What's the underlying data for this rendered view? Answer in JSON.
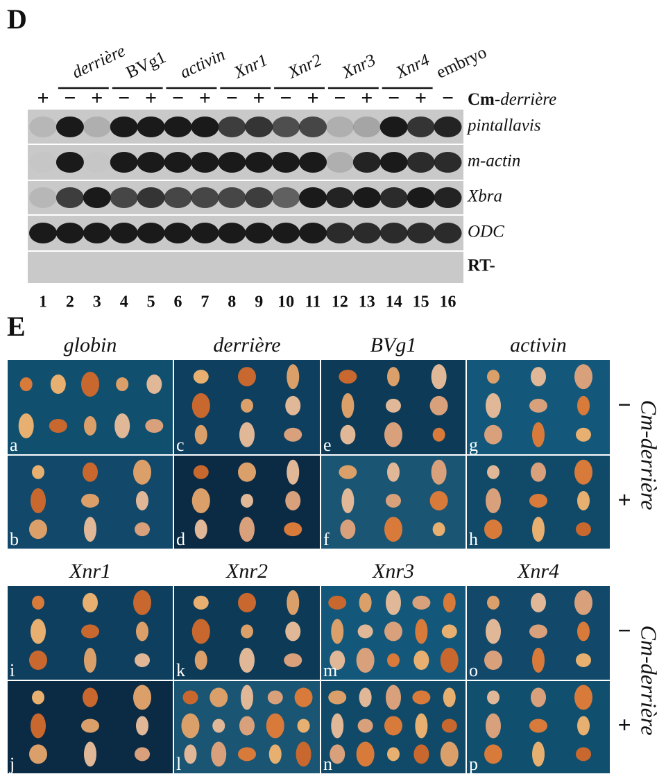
{
  "panel_d": {
    "label": "D",
    "groups": [
      "derrière",
      "BVg1",
      "activin",
      "Xnr1",
      "Xnr2",
      "Xnr3",
      "Xnr4",
      "embryo"
    ],
    "signs": [
      "+",
      "−",
      "+",
      "−",
      "+",
      "−",
      "+",
      "−",
      "+",
      "−",
      "+",
      "−",
      "+",
      "−",
      "+",
      "−"
    ],
    "condition": {
      "prefix": "Cm-",
      "name": "derrière"
    },
    "rows": [
      "pintallavis",
      "m-actin",
      "Xbra",
      "ODC",
      "RT-"
    ],
    "lanes": [
      1,
      2,
      3,
      4,
      5,
      6,
      7,
      8,
      9,
      10,
      11,
      12,
      13,
      14,
      15,
      16
    ]
  },
  "panel_e": {
    "label": "E",
    "columns_top": [
      "globin",
      "derrière",
      "BVg1",
      "activin"
    ],
    "columns_bottom": [
      "Xnr1",
      "Xnr2",
      "Xnr3",
      "Xnr4"
    ],
    "panels": [
      "a",
      "b",
      "c",
      "d",
      "e",
      "f",
      "g",
      "h",
      "i",
      "j",
      "k",
      "l",
      "m",
      "n",
      "o",
      "p"
    ],
    "side_signs": [
      "−",
      "+",
      "−",
      "+"
    ],
    "side_label": "Cm-derrière"
  }
}
